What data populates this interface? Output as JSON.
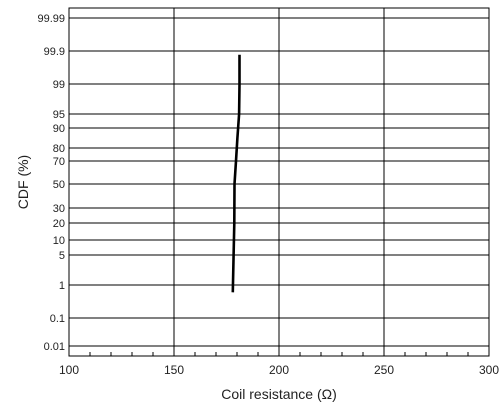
{
  "chart_data": {
    "type": "line",
    "title": "",
    "xlabel": "Coil resistance (Ω)",
    "ylabel": "CDF (%)",
    "xlim": [
      100,
      300
    ],
    "x_ticks": [
      100,
      150,
      200,
      250,
      300
    ],
    "x_tick_labels": [
      "100",
      "150",
      "200",
      "250",
      "300"
    ],
    "x_minor_step": 10,
    "y_scale": "probability",
    "y_ticks": [
      0.01,
      0.1,
      1,
      5,
      10,
      20,
      30,
      50,
      70,
      80,
      90,
      95,
      99,
      99.9,
      99.99
    ],
    "y_tick_labels": [
      "0.01",
      "0.1",
      "1",
      "5",
      "10",
      "20",
      "30",
      "50",
      "70",
      "80",
      "90",
      "95",
      "99",
      "99.9",
      "99.99"
    ],
    "grid": true,
    "series": [
      {
        "color": "#000000",
        "points": [
          {
            "x": 178.0,
            "y": 0.8
          },
          {
            "x": 178.4,
            "y": 5
          },
          {
            "x": 178.7,
            "y": 20
          },
          {
            "x": 178.8,
            "y": 50
          },
          {
            "x": 179.5,
            "y": 70
          },
          {
            "x": 180.2,
            "y": 85
          },
          {
            "x": 181.0,
            "y": 95
          },
          {
            "x": 181.2,
            "y": 99
          },
          {
            "x": 181.2,
            "y": 99.8
          }
        ]
      }
    ]
  }
}
